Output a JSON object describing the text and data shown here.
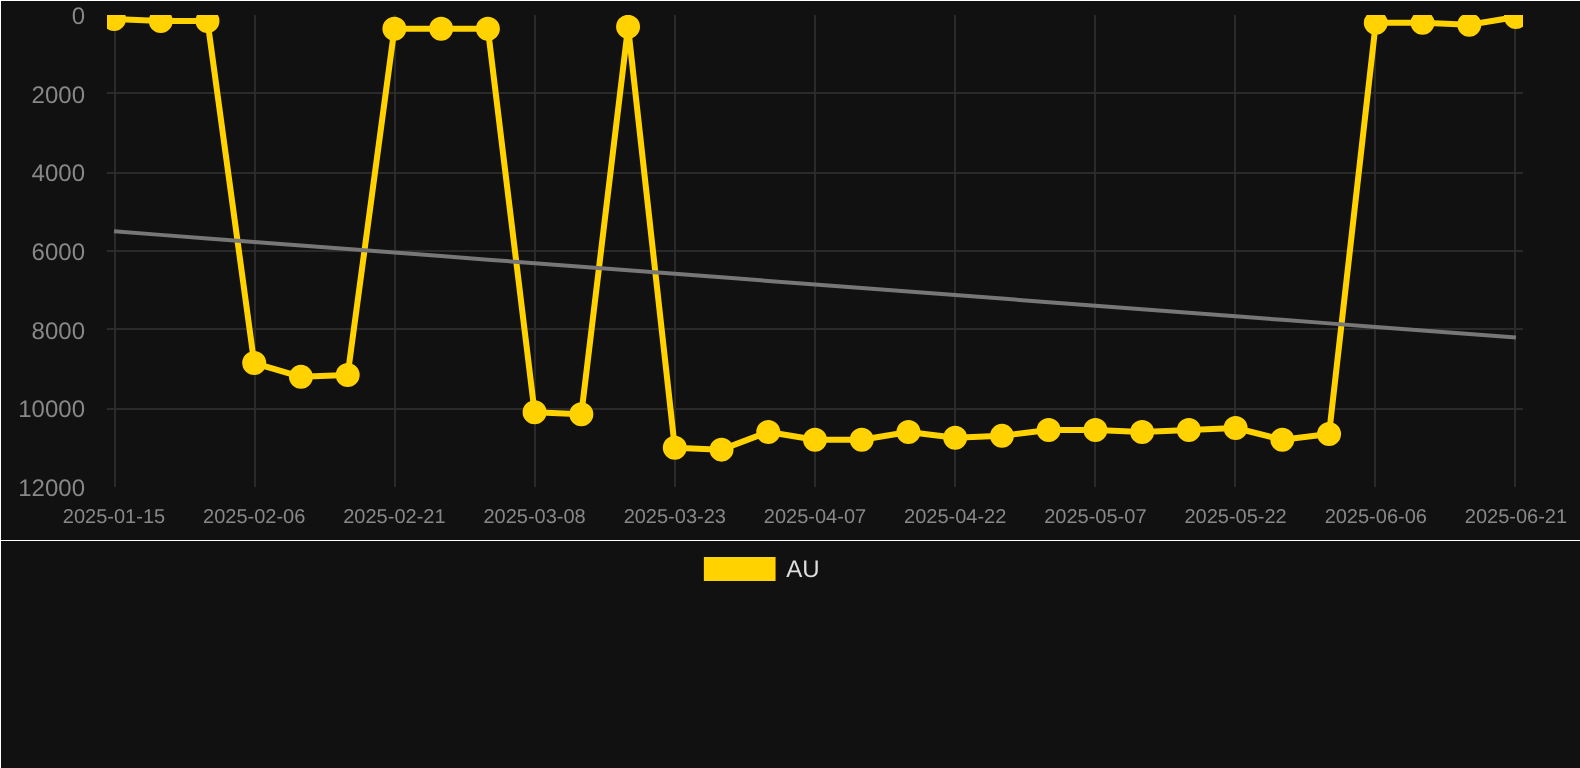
{
  "chart_data": {
    "type": "line",
    "categories": [
      "2025-01-15",
      null,
      null,
      "2025-02-06",
      null,
      null,
      "2025-02-21",
      null,
      null,
      "2025-03-08",
      null,
      null,
      "2025-03-23",
      null,
      null,
      "2025-04-07",
      null,
      null,
      "2025-04-22",
      null,
      null,
      "2025-05-07",
      null,
      null,
      "2025-05-22",
      null,
      null,
      "2025-06-06",
      null,
      null,
      "2025-06-21"
    ],
    "series": [
      {
        "name": "AU",
        "color": "#ffd200",
        "marker": "circle",
        "values": [
          100,
          150,
          150,
          8850,
          9200,
          9150,
          350,
          350,
          350,
          10100,
          10150,
          300,
          11000,
          11050,
          10600,
          10800,
          10800,
          10600,
          10750,
          10700,
          10550,
          10550,
          10600,
          10550,
          10500,
          10800,
          10650,
          200,
          200,
          250,
          50
        ]
      },
      {
        "type": "line",
        "color": "#777777",
        "marker": "none",
        "values": [
          5500,
          5590,
          5680,
          5770,
          5860,
          5950,
          6040,
          6130,
          6220,
          6310,
          6400,
          6490,
          6580,
          6670,
          6760,
          6850,
          6940,
          7030,
          7120,
          7210,
          7300,
          7390,
          7480,
          7570,
          7660,
          7750,
          7840,
          7930,
          8020,
          8110,
          8200
        ]
      }
    ],
    "ylim": [
      12000,
      0
    ],
    "yticks": [
      0,
      2000,
      4000,
      6000,
      8000,
      10000,
      12000
    ],
    "grid": true,
    "legend": "bottom"
  }
}
